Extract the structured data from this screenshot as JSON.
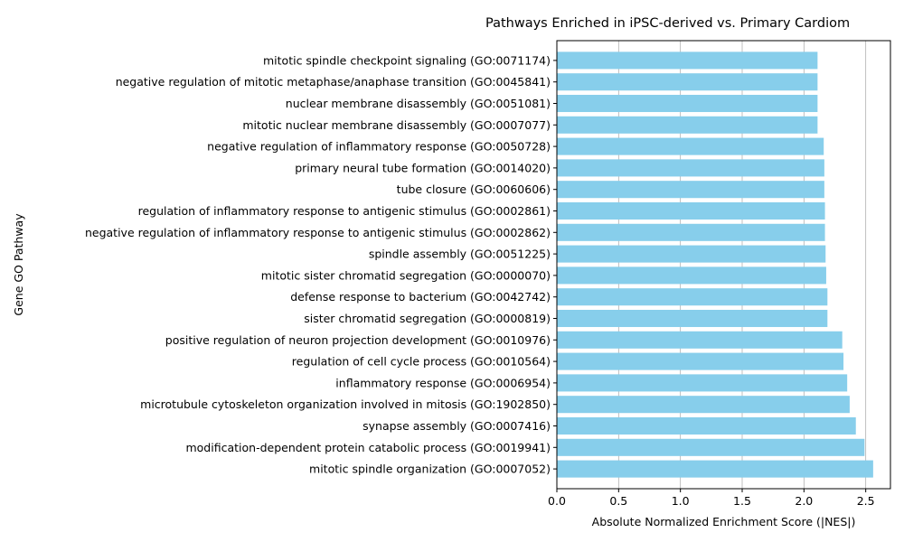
{
  "chart_data": {
    "type": "bar",
    "orientation": "horizontal",
    "title": "Pathways Enriched in iPSC-derived vs. Primary Cardiom",
    "xlabel": "Absolute Normalized Enrichment Score (|NES|)",
    "ylabel": "Gene GO Pathway",
    "xlim": [
      0,
      2.7
    ],
    "xticks": [
      0.0,
      0.5,
      1.0,
      1.5,
      2.0,
      2.5
    ],
    "xtick_labels": [
      "0.0",
      "0.5",
      "1.0",
      "1.5",
      "2.0",
      "2.5"
    ],
    "grid": "vertical",
    "bar_color": "#87CEEB",
    "categories": [
      "mitotic spindle organization (GO:0007052)",
      "modification-dependent protein catabolic process (GO:0019941)",
      "synapse assembly (GO:0007416)",
      "microtubule cytoskeleton organization involved in mitosis (GO:1902850)",
      "inflammatory response (GO:0006954)",
      "regulation of cell cycle process (GO:0010564)",
      "positive regulation of neuron projection development (GO:0010976)",
      "sister chromatid segregation (GO:0000819)",
      "defense response to bacterium (GO:0042742)",
      "mitotic sister chromatid segregation (GO:0000070)",
      "spindle assembly (GO:0051225)",
      "negative regulation of inflammatory response to antigenic stimulus (GO:0002862)",
      "regulation of inflammatory response to antigenic stimulus (GO:0002861)",
      "tube closure (GO:0060606)",
      "primary neural tube formation (GO:0014020)",
      "negative regulation of inflammatory response (GO:0050728)",
      "mitotic nuclear membrane disassembly (GO:0007077)",
      "nuclear membrane disassembly (GO:0051081)",
      "negative regulation of mitotic metaphase/anaphase transition (GO:0045841)",
      "mitotic spindle checkpoint signaling (GO:0071174)"
    ],
    "values": [
      2.56,
      2.49,
      2.42,
      2.37,
      2.35,
      2.32,
      2.31,
      2.19,
      2.19,
      2.18,
      2.175,
      2.17,
      2.17,
      2.165,
      2.165,
      2.16,
      2.11,
      2.11,
      2.11,
      2.11
    ]
  }
}
